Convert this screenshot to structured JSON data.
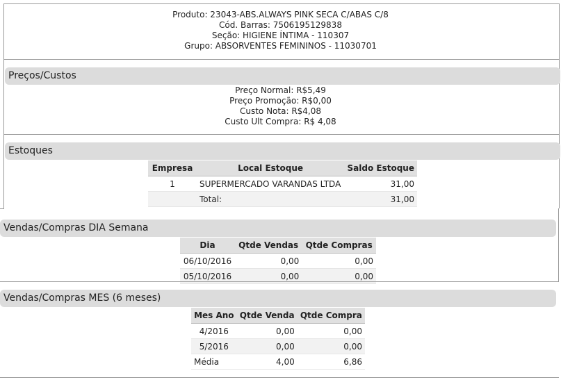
{
  "header_lines": [
    "Produto: 23043-ABS.ALWAYS PINK SECA C/ABAS C/8",
    "Cód. Barras: 7506195129838",
    "Seção: HIGIENE ÍNTIMA - 110307",
    "Grupo: ABSORVENTES FEMININOS - 11030701"
  ],
  "precos": {
    "title": "Preços/Custos",
    "lines": [
      "Preço Normal: R$5,49",
      "Preço Promoção: R$0,00",
      "Custo Nota: R$4,08",
      "Custo Ult Compra: R$ 4,08"
    ]
  },
  "estoques": {
    "title": "Estoques",
    "columns": [
      "Empresa",
      "Local Estoque",
      "Saldo Estoque"
    ],
    "rows": [
      [
        "1",
        "SUPERMERCADO VARANDAS LTDA",
        "31,00"
      ]
    ],
    "total": [
      "Total:",
      "31,00"
    ]
  },
  "dia": {
    "title": "Vendas/Compras DIA Semana",
    "columns": [
      "Dia",
      "Qtde Vendas",
      "Qtde Compras"
    ],
    "rows": [
      [
        "06/10/2016",
        "0,00",
        "0,00"
      ],
      [
        "05/10/2016",
        "0,00",
        "0,00"
      ]
    ]
  },
  "mes": {
    "title": "Vendas/Compras MES (6 meses)",
    "columns": [
      "Mes Ano",
      "Qtde Venda",
      "Qtde Compra"
    ],
    "rows": [
      [
        "4/2016",
        "0,00",
        "0,00"
      ],
      [
        "5/2016",
        "0,00",
        "0,00"
      ],
      [
        "Média",
        "4,00",
        "6,86"
      ]
    ]
  }
}
